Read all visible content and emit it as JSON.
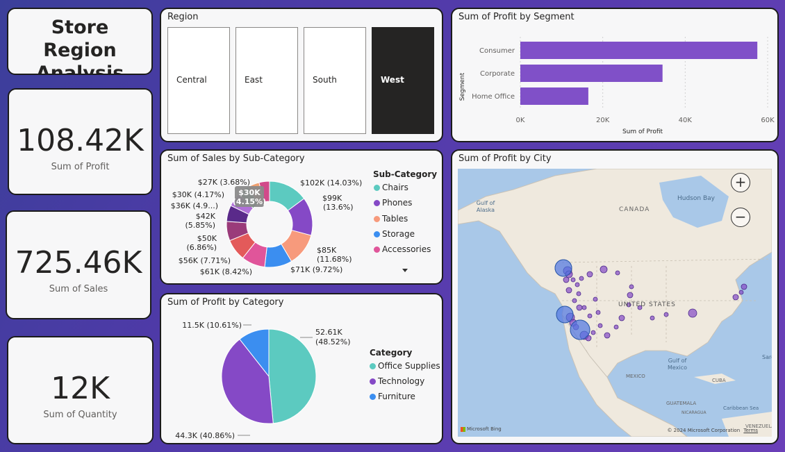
{
  "title": "Store Region Analysis",
  "kpis": [
    {
      "value": "108.42K",
      "label": "Sum of Profit"
    },
    {
      "value": "725.46K",
      "label": "Sum of Sales"
    },
    {
      "value": "12K",
      "label": "Sum of Quantity"
    }
  ],
  "region_slicer": {
    "title": "Region",
    "options": [
      "Central",
      "East",
      "South",
      "West"
    ],
    "selected": "West"
  },
  "segment_chart": {
    "title": "Sum of Profit by Segment",
    "ylabel": "Segment",
    "xlabel": "Sum of Profit",
    "ticks": [
      "0K",
      "20K",
      "40K",
      "60K"
    ]
  },
  "subcategory_chart": {
    "title": "Sum of Sales by Sub-Category",
    "legend_title": "Sub-Category",
    "legend": [
      "Chairs",
      "Phones",
      "Tables",
      "Storage",
      "Accessories"
    ],
    "tooltip": [
      "$30K",
      "(4.15%)"
    ],
    "labels": [
      [
        "$102K (14.03%)"
      ],
      [
        "$99K",
        "(13.6%)"
      ],
      [
        "$85K",
        "(11.68%)"
      ],
      [
        "$71K (9.72%)"
      ],
      [
        "$61K (8.42%)"
      ],
      [
        "$56K (7.71%)"
      ],
      [
        "$50K",
        "(6.86%)"
      ],
      [
        "$42K",
        "(5.85%)"
      ],
      [
        "$36K (4.9...)"
      ],
      [
        "$30K (4.17%)"
      ],
      [
        "$27K (3.68%)"
      ]
    ]
  },
  "category_chart": {
    "title": "Sum of Profit by Category",
    "legend_title": "Category",
    "legend": [
      "Office Supplies",
      "Technology",
      "Furniture"
    ],
    "labels": [
      [
        "52.61K",
        "(48.52%)"
      ],
      [
        "44.3K (40.86%)"
      ],
      [
        "11.5K (10.61%)"
      ]
    ]
  },
  "city_map": {
    "title": "Sum of Profit by City",
    "places": [
      "Hudson Bay",
      "Gulf of Alaska",
      "CANADA",
      "UNITED STATES",
      "Gulf of Mexico",
      "MEXICO",
      "CUBA",
      "GUATEMALA",
      "Caribbean Sea",
      "NICARAGUA",
      "VENEZUELA",
      "Sarg"
    ],
    "attribution": "© 2024 Microsoft Corporation",
    "terms": "Terms",
    "bing": "Microsoft Bing"
  },
  "colors": {
    "accent_purple": "#8050c8",
    "chairs": "#5ccac0",
    "phones": "#8549c6",
    "tables": "#f79a7c",
    "storage": "#3b8ef0",
    "accessories": "#e0559a",
    "office_supplies": "#5ccac0",
    "technology": "#8549c6",
    "furniture": "#3b8ef0"
  },
  "chart_data": [
    {
      "type": "bar",
      "orientation": "horizontal",
      "title": "Sum of Profit by Segment",
      "categories": [
        "Consumer",
        "Corporate",
        "Home Office"
      ],
      "values": [
        57500,
        34500,
        16500
      ],
      "xlabel": "Sum of Profit",
      "ylabel": "Segment",
      "xlim": [
        0,
        60000
      ]
    },
    {
      "type": "pie",
      "subtype": "donut",
      "title": "Sum of Sales by Sub-Category",
      "values": [
        102,
        99,
        85,
        71,
        61,
        56,
        50,
        42,
        36,
        30,
        30,
        27
      ],
      "percent": [
        14.03,
        13.6,
        11.68,
        9.72,
        8.42,
        7.71,
        6.86,
        5.85,
        4.9,
        4.17,
        4.15,
        3.68
      ]
    },
    {
      "type": "pie",
      "title": "Sum of Profit by Category",
      "categories": [
        "Office Supplies",
        "Technology",
        "Furniture"
      ],
      "values": [
        52.61,
        44.3,
        11.5
      ],
      "percent": [
        48.52,
        40.86,
        10.61
      ]
    }
  ]
}
